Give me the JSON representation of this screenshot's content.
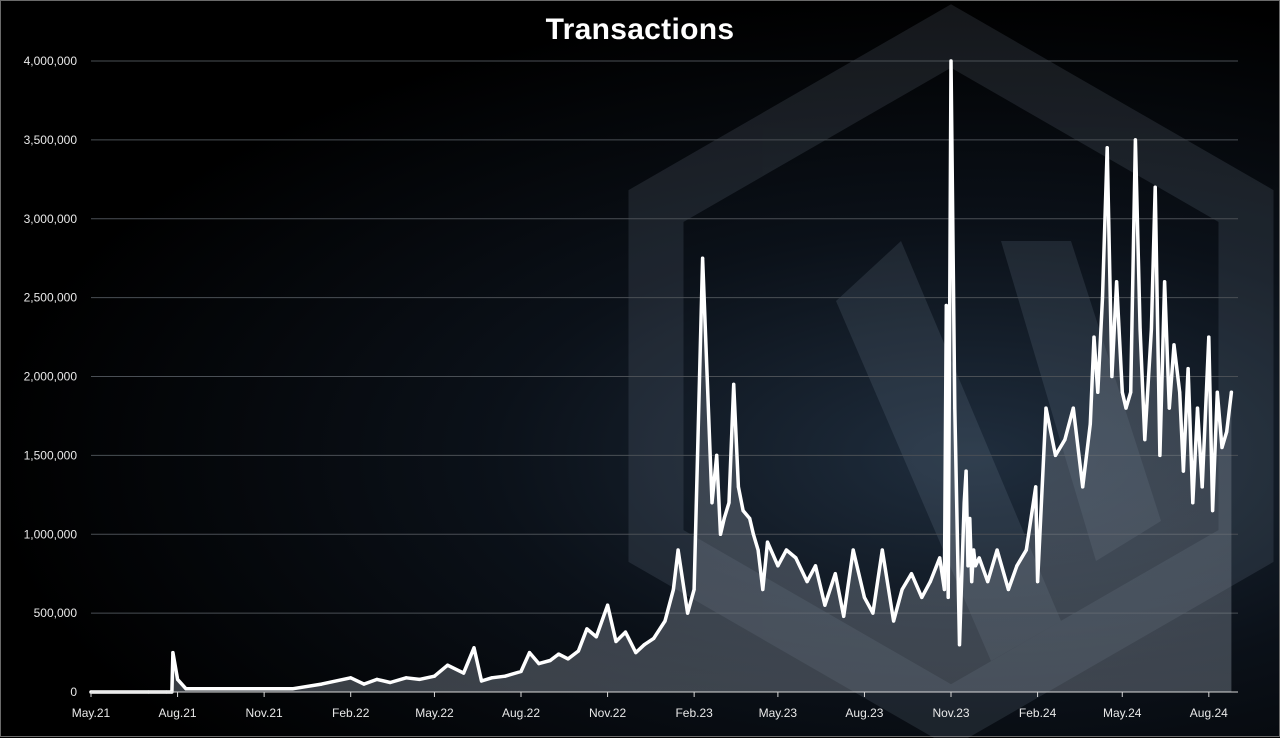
{
  "chart_data": {
    "type": "line",
    "title": "Transactions",
    "xlabel": "",
    "ylabel": "",
    "ylim": [
      0,
      4000000
    ],
    "y_ticks": [
      "0",
      "500,000",
      "1,000,000",
      "1,500,000",
      "2,000,000",
      "2,500,000",
      "3,000,000",
      "3,500,000",
      "4,000,000"
    ],
    "x_ticks": [
      "May.21",
      "Aug.21",
      "Nov.21",
      "Feb.22",
      "May.22",
      "Aug.22",
      "Nov.22",
      "Feb.23",
      "May.23",
      "Aug.23",
      "Nov.23",
      "Feb.24",
      "May.24",
      "Aug.24"
    ],
    "grid": true,
    "line_color": "#ffffff",
    "x": [
      "2021-05-01",
      "2021-07-01",
      "2021-07-20",
      "2021-07-26",
      "2021-07-27",
      "2021-08-01",
      "2021-08-10",
      "2021-09-01",
      "2021-10-01",
      "2021-11-01",
      "2021-12-01",
      "2022-01-01",
      "2022-02-01",
      "2022-02-15",
      "2022-03-01",
      "2022-03-15",
      "2022-04-01",
      "2022-04-15",
      "2022-05-01",
      "2022-05-15",
      "2022-06-01",
      "2022-06-12",
      "2022-06-20",
      "2022-07-01",
      "2022-07-15",
      "2022-08-01",
      "2022-08-10",
      "2022-08-20",
      "2022-09-01",
      "2022-09-10",
      "2022-09-20",
      "2022-10-01",
      "2022-10-10",
      "2022-10-20",
      "2022-11-01",
      "2022-11-10",
      "2022-11-20",
      "2022-12-01",
      "2022-12-10",
      "2022-12-20",
      "2023-01-01",
      "2023-01-10",
      "2023-01-15",
      "2023-01-25",
      "2023-02-01",
      "2023-02-10",
      "2023-02-20",
      "2023-02-25",
      "2023-03-01",
      "2023-03-05",
      "2023-03-10",
      "2023-03-15",
      "2023-03-20",
      "2023-03-25",
      "2023-04-01",
      "2023-04-05",
      "2023-04-10",
      "2023-04-15",
      "2023-04-20",
      "2023-05-01",
      "2023-05-10",
      "2023-05-20",
      "2023-06-01",
      "2023-06-10",
      "2023-06-20",
      "2023-07-01",
      "2023-07-10",
      "2023-07-20",
      "2023-08-01",
      "2023-08-10",
      "2023-08-20",
      "2023-09-01",
      "2023-09-10",
      "2023-09-20",
      "2023-10-01",
      "2023-10-10",
      "2023-10-20",
      "2023-10-25",
      "2023-10-27",
      "2023-10-29",
      "2023-11-01",
      "2023-11-05",
      "2023-11-10",
      "2023-11-15",
      "2023-11-17",
      "2023-11-19",
      "2023-11-21",
      "2023-11-23",
      "2023-11-25",
      "2023-11-27",
      "2023-12-01",
      "2023-12-10",
      "2023-12-20",
      "2024-01-01",
      "2024-01-10",
      "2024-01-20",
      "2024-01-30",
      "2024-02-01",
      "2024-02-10",
      "2024-02-20",
      "2024-03-01",
      "2024-03-10",
      "2024-03-20",
      "2024-03-28",
      "2024-04-01",
      "2024-04-05",
      "2024-04-10",
      "2024-04-15",
      "2024-04-20",
      "2024-04-25",
      "2024-05-01",
      "2024-05-05",
      "2024-05-10",
      "2024-05-15",
      "2024-05-20",
      "2024-05-25",
      "2024-06-01",
      "2024-06-05",
      "2024-06-10",
      "2024-06-15",
      "2024-06-20",
      "2024-06-25",
      "2024-07-01",
      "2024-07-05",
      "2024-07-10",
      "2024-07-15",
      "2024-07-20",
      "2024-07-25",
      "2024-08-01",
      "2024-08-05",
      "2024-08-10",
      "2024-08-15",
      "2024-08-20",
      "2024-08-25"
    ],
    "series": [
      {
        "values": [
          0,
          0,
          0,
          0,
          250000,
          80000,
          20000,
          20000,
          20000,
          20000,
          20000,
          50000,
          90000,
          50000,
          80000,
          60000,
          90000,
          80000,
          100000,
          170000,
          120000,
          280000,
          70000,
          90000,
          100000,
          130000,
          250000,
          180000,
          200000,
          240000,
          210000,
          260000,
          400000,
          350000,
          550000,
          320000,
          380000,
          250000,
          300000,
          340000,
          450000,
          650000,
          900000,
          500000,
          650000,
          2750000,
          1200000,
          1500000,
          1000000,
          1100000,
          1200000,
          1950000,
          1300000,
          1150000,
          1100000,
          1000000,
          900000,
          650000,
          950000,
          800000,
          900000,
          850000,
          700000,
          800000,
          550000,
          750000,
          480000,
          900000,
          600000,
          500000,
          900000,
          450000,
          650000,
          750000,
          600000,
          700000,
          850000,
          650000,
          2450000,
          600000,
          4000000,
          1800000,
          300000,
          1200000,
          1400000,
          800000,
          1100000,
          700000,
          900000,
          800000,
          850000,
          700000,
          900000,
          650000,
          800000,
          900000,
          1300000,
          700000,
          1800000,
          1500000,
          1600000,
          1800000,
          1300000,
          1700000,
          2250000,
          1900000,
          2500000,
          3450000,
          2000000,
          2600000,
          1900000,
          1800000,
          1900000,
          3500000,
          2300000,
          1600000,
          2300000,
          3200000,
          1500000,
          2600000,
          1800000,
          2200000,
          1900000,
          1400000,
          2050000,
          1200000,
          1800000,
          1300000,
          2250000,
          1150000,
          1900000,
          1550000,
          1650000,
          1900000
        ]
      }
    ]
  }
}
